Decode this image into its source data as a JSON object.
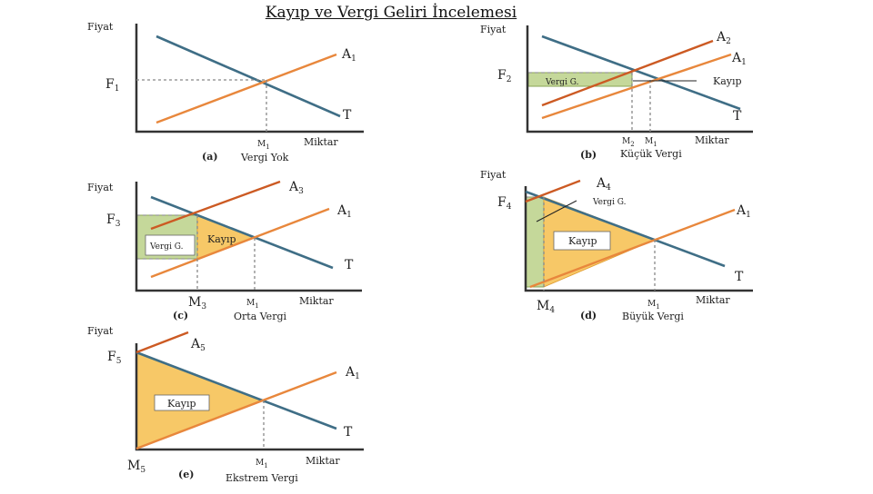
{
  "title": "Kayıp ve Vergi Geliri İncelemesi",
  "common": {
    "price_axis": "Fiyat",
    "quantity_axis": "Miktar",
    "demand_label": "T",
    "supply_label": "A",
    "supply_sub": "1",
    "tax_label": "Vergi G.",
    "loss_label": "Kayıp",
    "m1_label": "M",
    "m1_sub": "1"
  },
  "panels": [
    {
      "letter": "(a)",
      "name": "Vergi Yok",
      "price": "F",
      "price_sub": "1",
      "supply": "A",
      "supply_sub": "1",
      "qty": "M",
      "qty_sub": "1"
    },
    {
      "letter": "(b)",
      "name": "Küçük Vergi",
      "price": "F",
      "price_sub": "2",
      "supply": "A",
      "supply_sub": "2",
      "qty": "M",
      "qty_sub": "2"
    },
    {
      "letter": "(c)",
      "name": "Orta Vergi",
      "price": "F",
      "price_sub": "3",
      "supply": "A",
      "supply_sub": "3",
      "qty": "M",
      "qty_sub": "3"
    },
    {
      "letter": "(d)",
      "name": "Büyük Vergi",
      "price": "F",
      "price_sub": "4",
      "supply": "A",
      "supply_sub": "4",
      "qty": "M",
      "qty_sub": "4"
    },
    {
      "letter": "(e)",
      "name": "Ekstrem Vergi",
      "price": "F",
      "price_sub": "5",
      "supply": "A",
      "supply_sub": "5",
      "qty": "M",
      "qty_sub": "5"
    }
  ],
  "colors": {
    "demand": "#3f6e86",
    "supply": "#e8873c",
    "supply_taxed": "#cc5a23",
    "tax_revenue": "#c5d89a",
    "deadweight_loss": "#f7c867"
  }
}
